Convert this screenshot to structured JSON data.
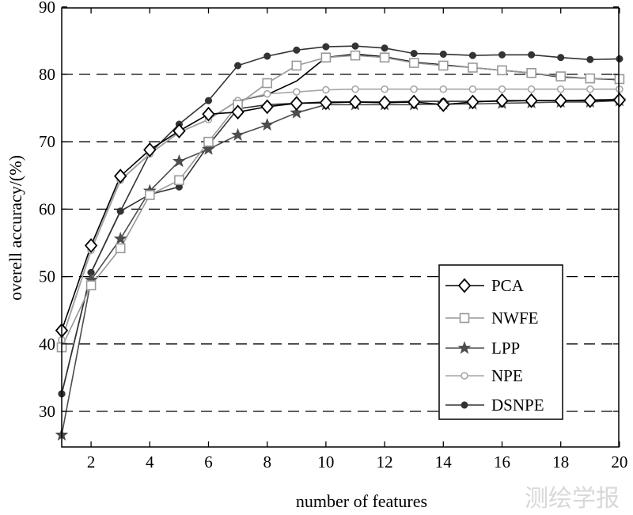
{
  "watermark": "测绘学报",
  "chart_data": {
    "type": "line",
    "xlabel": "number of features",
    "ylabel": "overell accuracy/(%)",
    "xlim": [
      1,
      20
    ],
    "ylim": [
      25,
      90
    ],
    "xticks": [
      2,
      4,
      6,
      8,
      10,
      12,
      14,
      16,
      18,
      20
    ],
    "yticks": [
      30,
      40,
      50,
      60,
      70,
      80,
      90
    ],
    "grid": "horizontal-dashed",
    "legend_position": "bottom-right",
    "x": [
      1,
      2,
      3,
      4,
      5,
      6,
      7,
      8,
      9,
      10,
      11,
      12,
      13,
      14,
      15,
      16,
      17,
      18,
      19,
      20
    ],
    "series": [
      {
        "name": "PCA",
        "color": "#000000",
        "marker": "diamond",
        "values": [
          42,
          54.6,
          64.9,
          68.8,
          71.6,
          74.1,
          74.4,
          75.2,
          75.7,
          75.8,
          75.9,
          75.8,
          75.9,
          75.5,
          75.9,
          76.1,
          76.1,
          76.1,
          76.1,
          76.2
        ]
      },
      {
        "name": "NWFE",
        "color": "#999999",
        "marker": "square",
        "values": [
          39.5,
          48.7,
          54.2,
          62.1,
          64.3,
          70.0,
          75.5,
          78.7,
          81.3,
          82.5,
          82.8,
          82.5,
          81.7,
          81.3,
          81.0,
          80.6,
          80.2,
          79.7,
          79.4,
          79.3
        ]
      },
      {
        "name": "LPP",
        "color": "#4d4d4d",
        "marker": "star",
        "values": [
          26.5,
          49.5,
          55.6,
          62.7,
          67.1,
          68.9,
          71.0,
          72.5,
          74.3,
          75.5,
          75.5,
          75.5,
          75.5,
          75.6,
          75.6,
          75.7,
          75.8,
          75.9,
          75.9,
          76.1
        ]
      },
      {
        "name": "NPE",
        "color": "#a6a6a6",
        "marker": "circle-open",
        "values": [
          40.6,
          53.9,
          64.3,
          68.2,
          71.4,
          73.3,
          76.1,
          77.1,
          77.4,
          77.7,
          77.8,
          77.8,
          77.8,
          77.8,
          77.8,
          77.8,
          77.8,
          77.8,
          77.8,
          77.8
        ]
      },
      {
        "name": "DSNPE",
        "color": "#333333",
        "marker": "dot",
        "values": [
          32.6,
          50.6,
          59.7,
          62.2,
          63.3,
          69.5,
          74.9,
          75.5,
          75.7,
          75.9,
          75.9,
          75.9,
          76.0,
          76.0,
          76.0,
          76.0,
          76.1,
          76.1,
          76.2,
          76.3
        ]
      }
    ],
    "extra_lines": [
      {
        "color": "#000000",
        "x": [
          1,
          2,
          3,
          4,
          5,
          6,
          7,
          8,
          9,
          10,
          11,
          12,
          13,
          14,
          15,
          16,
          17,
          18,
          19,
          20
        ],
        "values": [
          40.6,
          53.9,
          64.3,
          68.2,
          71.4,
          73.3,
          76.1,
          77.0,
          79.0,
          82.5,
          83.0,
          82.6,
          81.8,
          81.4,
          81.0,
          80.6,
          80.2,
          79.6,
          79.4,
          79.2
        ]
      },
      {
        "color": "#333333",
        "marker": "dot",
        "x": [
          1,
          2,
          3,
          4,
          5,
          6,
          7,
          8,
          9,
          10,
          11,
          12,
          13,
          14,
          15,
          16,
          17,
          18,
          19,
          20
        ],
        "values": [
          32.6,
          50.6,
          59.7,
          68.3,
          72.6,
          76.1,
          81.3,
          82.7,
          83.6,
          84.1,
          84.2,
          83.9,
          83.1,
          83.0,
          82.8,
          82.9,
          82.9,
          82.5,
          82.2,
          82.3
        ]
      }
    ]
  }
}
